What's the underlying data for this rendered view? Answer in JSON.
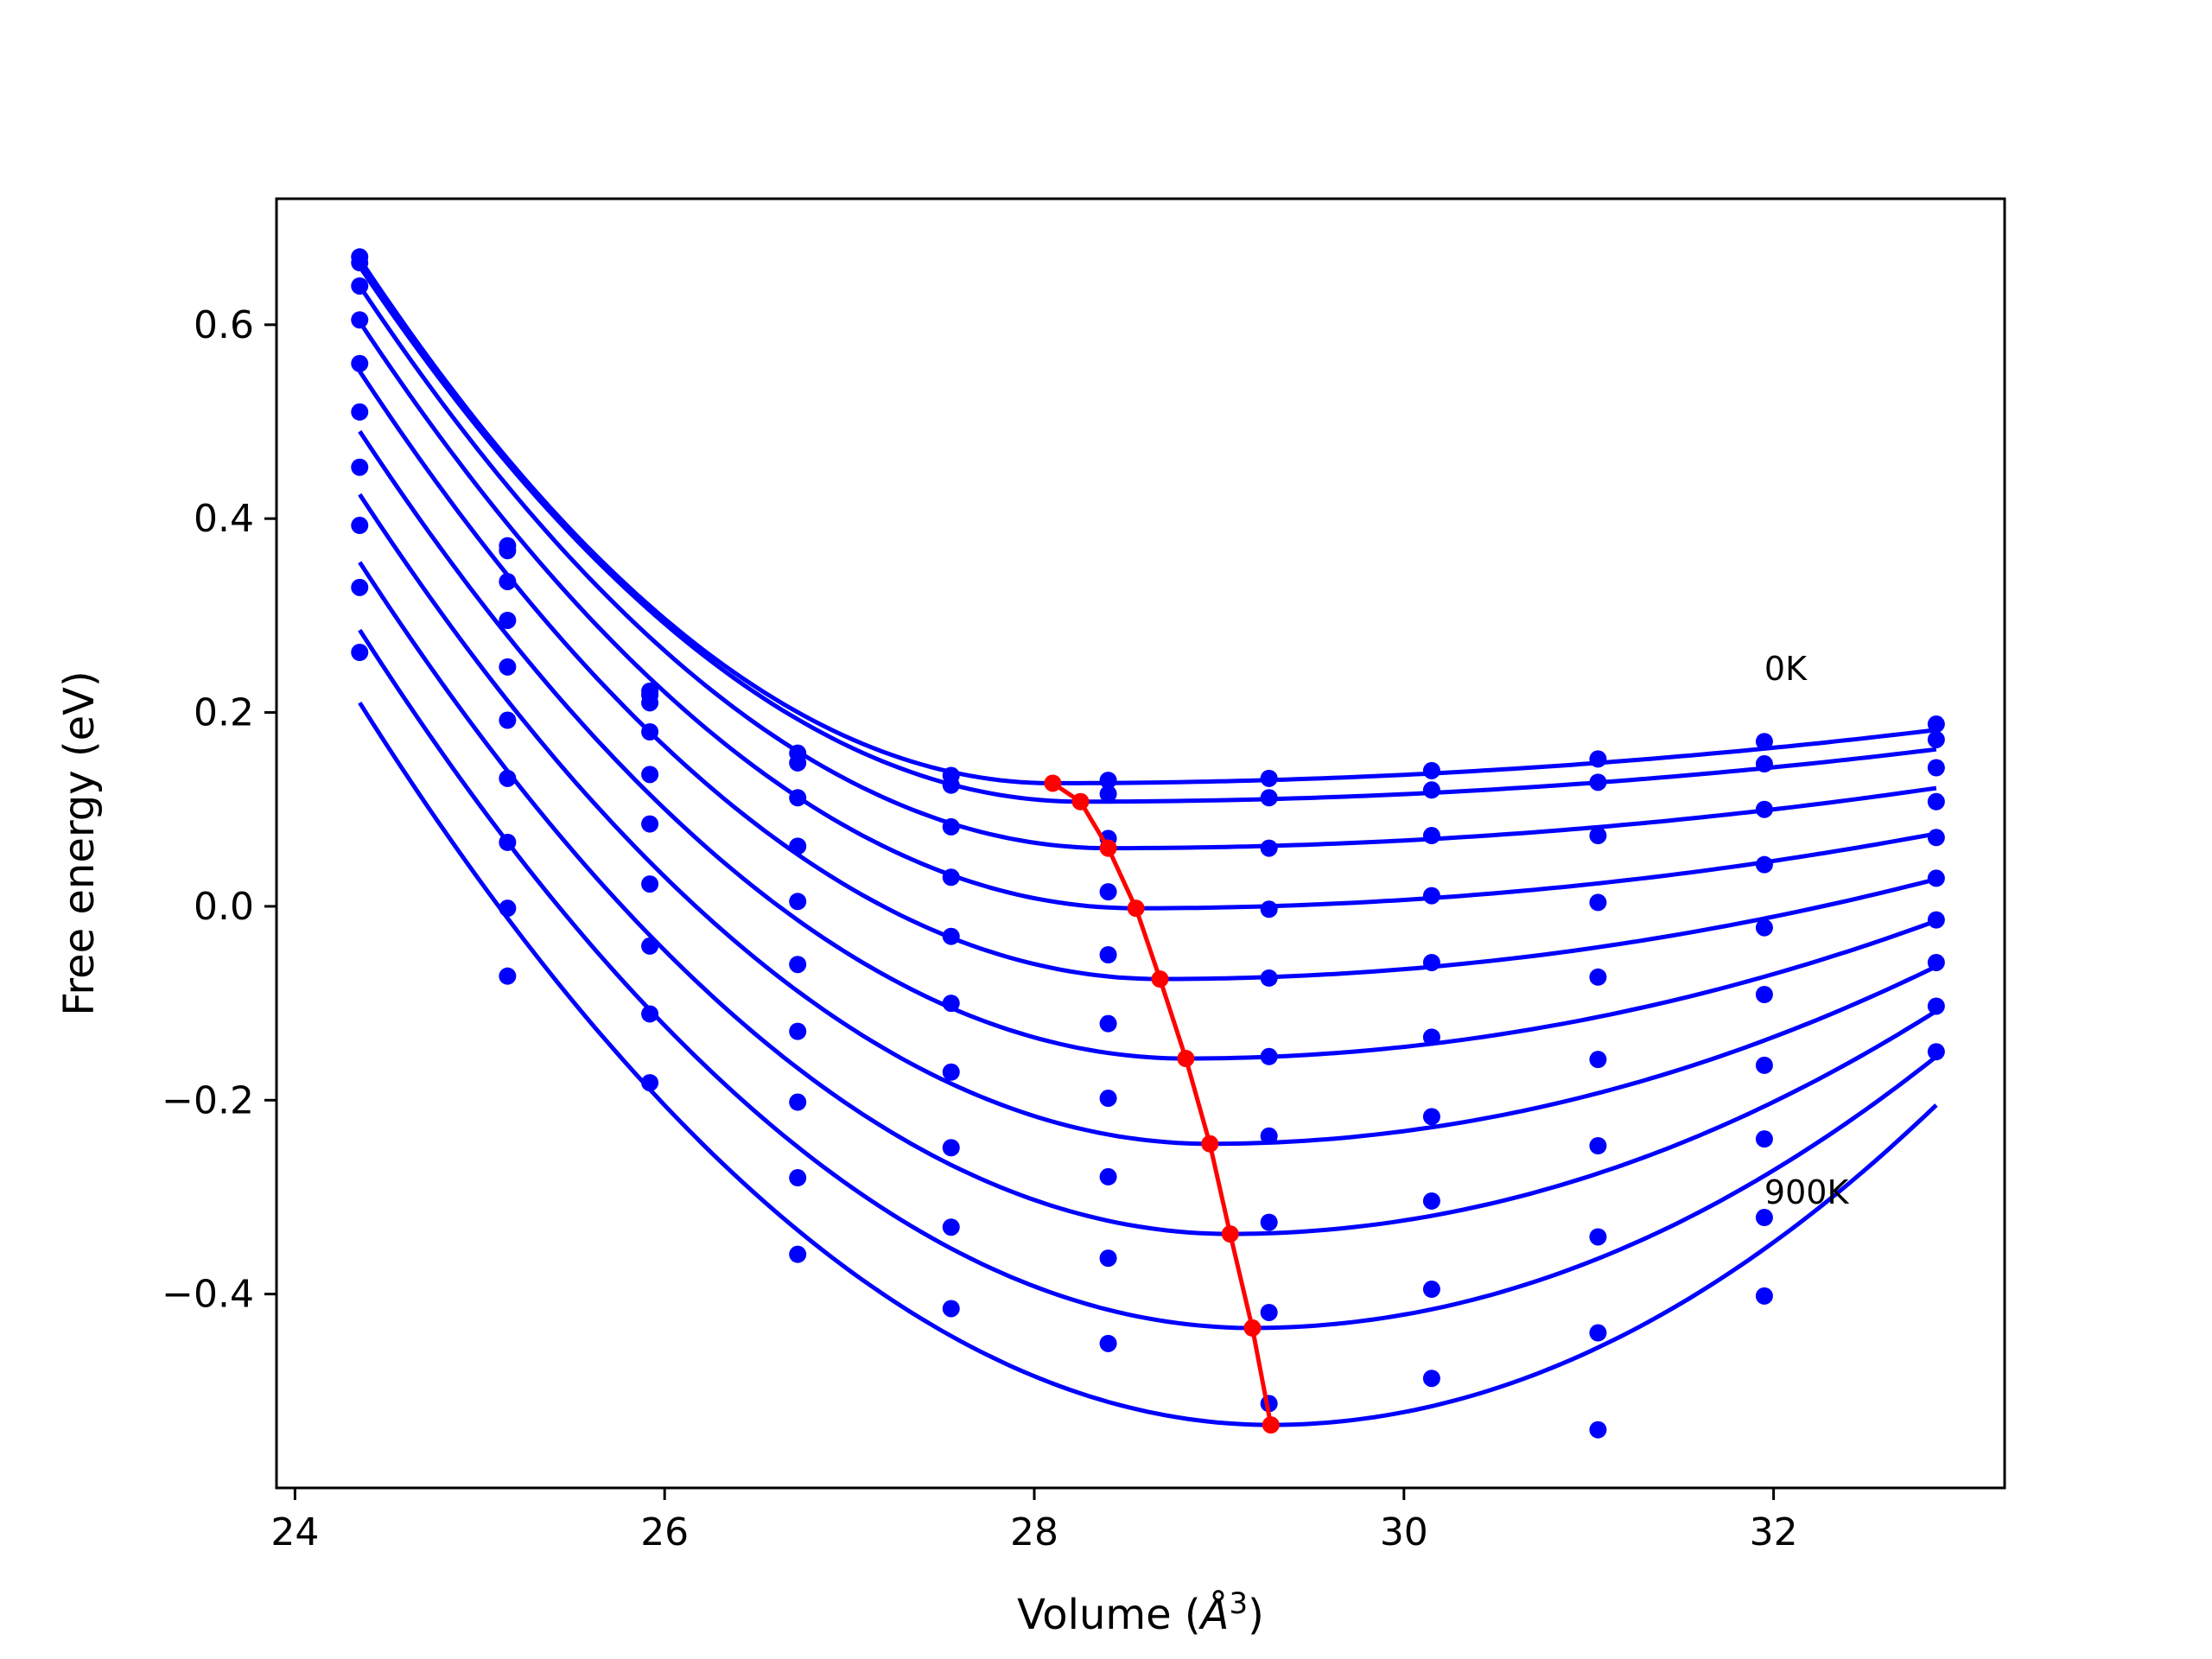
{
  "chart_data": {
    "type": "scatter",
    "title": "",
    "xlabel_prefix": "Volume (",
    "xlabel_symbol": "Å",
    "xlabel_exp": "3",
    "xlabel_suffix": ")",
    "ylabel": "Free energy (eV)",
    "xlim": [
      23.9,
      33.25
    ],
    "ylim": [
      -0.6,
      0.73
    ],
    "x_ticks": [
      24,
      26,
      28,
      30,
      32
    ],
    "x_tick_labels": [
      "24",
      "26",
      "28",
      "30",
      "32"
    ],
    "y_ticks": [
      -0.4,
      -0.2,
      0.0,
      0.2,
      0.4,
      0.6
    ],
    "y_tick_labels": [
      "−0.4",
      "−0.2",
      "0.0",
      "0.2",
      "0.4",
      "0.6"
    ],
    "grid": false,
    "annotations": [
      {
        "text": "0K",
        "x": 31.95,
        "y": 0.245
      },
      {
        "text": "900K",
        "x": 31.95,
        "y": -0.295
      }
    ],
    "volumes": [
      24.35,
      25.15,
      25.92,
      26.72,
      27.55,
      28.4,
      29.27,
      30.15,
      31.05,
      31.95,
      32.88
    ],
    "fit_x_range": [
      24.35,
      32.88
    ],
    "fit_color": "#0000ff",
    "points_color": "#0000ff",
    "eq_color": "#ff0000",
    "series": [
      {
        "min_x": 28.1,
        "min_y": 0.127,
        "left_y": 0.668,
        "right_y": 0.182
      },
      {
        "min_x": 28.25,
        "min_y": 0.108,
        "left_y": 0.66,
        "right_y": 0.162
      },
      {
        "min_x": 28.4,
        "min_y": 0.06,
        "left_y": 0.64,
        "right_y": 0.122
      },
      {
        "min_x": 28.55,
        "min_y": -0.002,
        "left_y": 0.603,
        "right_y": 0.075
      },
      {
        "min_x": 28.68,
        "min_y": -0.075,
        "left_y": 0.552,
        "right_y": 0.028
      },
      {
        "min_x": 28.82,
        "min_y": -0.157,
        "left_y": 0.49,
        "right_y": -0.015
      },
      {
        "min_x": 28.95,
        "min_y": -0.245,
        "left_y": 0.425,
        "right_y": -0.062
      },
      {
        "min_x": 29.06,
        "min_y": -0.338,
        "left_y": 0.355,
        "right_y": -0.108
      },
      {
        "min_x": 29.18,
        "min_y": -0.435,
        "left_y": 0.285,
        "right_y": -0.155
      },
      {
        "min_x": 29.28,
        "min_y": -0.535,
        "left_y": 0.21,
        "right_y": -0.205
      }
    ],
    "points": [
      [
        0.67,
        0.367,
        0.222,
        0.158,
        0.135,
        0.13,
        0.132,
        0.14,
        0.152,
        0.17,
        0.188
      ],
      [
        0.664,
        0.372,
        0.218,
        0.148,
        0.125,
        0.116,
        0.112,
        0.12,
        0.128,
        0.147,
        0.172
      ],
      [
        0.64,
        0.335,
        0.21,
        0.112,
        0.082,
        0.07,
        0.06,
        0.073,
        0.073,
        0.1,
        0.143
      ],
      [
        0.605,
        0.295,
        0.18,
        0.062,
        0.03,
        0.015,
        -0.003,
        0.011,
        0.004,
        0.043,
        0.108
      ],
      [
        0.56,
        0.247,
        0.136,
        0.005,
        -0.031,
        -0.05,
        -0.074,
        -0.058,
        -0.073,
        -0.022,
        0.071
      ],
      [
        0.51,
        0.192,
        0.085,
        -0.06,
        -0.1,
        -0.121,
        -0.155,
        -0.135,
        -0.158,
        -0.091,
        0.029
      ],
      [
        0.453,
        0.132,
        0.023,
        -0.129,
        -0.171,
        -0.198,
        -0.237,
        -0.217,
        -0.247,
        -0.164,
        -0.014
      ],
      [
        0.393,
        0.066,
        -0.041,
        -0.202,
        -0.249,
        -0.279,
        -0.326,
        -0.304,
        -0.341,
        -0.24,
        -0.058
      ],
      [
        0.329,
        -0.002,
        -0.111,
        -0.28,
        -0.331,
        -0.363,
        -0.419,
        -0.395,
        -0.44,
        -0.321,
        -0.103
      ],
      [
        0.262,
        -0.072,
        -0.182,
        -0.359,
        -0.415,
        -0.451,
        -0.513,
        -0.487,
        -0.54,
        -0.402,
        -0.15
      ]
    ]
  }
}
